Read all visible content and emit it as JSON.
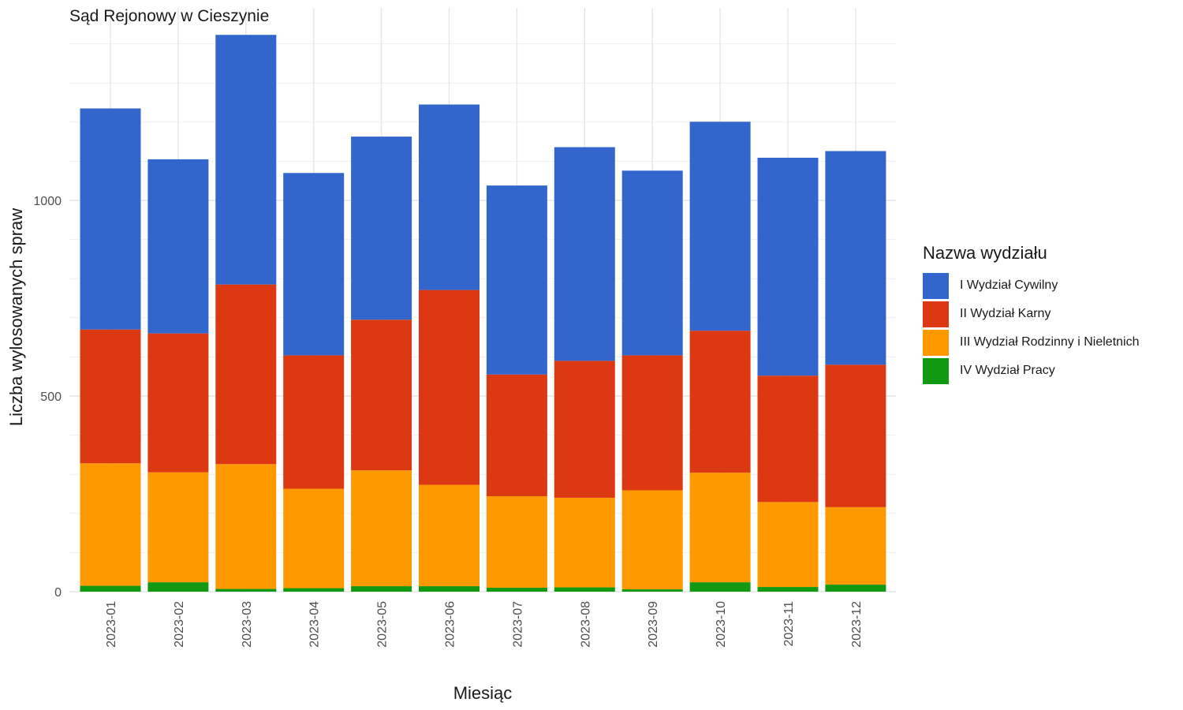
{
  "chart_data": {
    "type": "bar",
    "stacked": true,
    "title": "Sąd Rejonowy w Cieszynie",
    "xlabel": "Miesiąc",
    "ylabel": "Liczba wylosowanych spraw",
    "ylim": [
      0,
      1420
    ],
    "yticks": [
      0,
      500,
      1000
    ],
    "grid": true,
    "legend_title": "Nazwa wydziału",
    "legend_position": "right",
    "categories": [
      "2023-01",
      "2023-02",
      "2023-03",
      "2023-04",
      "2023-05",
      "2023-06",
      "2023-07",
      "2023-08",
      "2023-09",
      "2023-10",
      "2023-11",
      "2023-12"
    ],
    "series": [
      {
        "name": "IV Wydział Pracy",
        "color": "#119911",
        "values": [
          15,
          24,
          7,
          9,
          14,
          14,
          10,
          11,
          6,
          24,
          12,
          18
        ]
      },
      {
        "name": "III Wydział Rodzinny i Nieletnich",
        "color": "#FF9900",
        "values": [
          313,
          281,
          319,
          254,
          296,
          259,
          234,
          229,
          253,
          280,
          217,
          198
        ]
      },
      {
        "name": "II Wydział Karny",
        "color": "#DC3912",
        "values": [
          342,
          355,
          459,
          341,
          385,
          498,
          311,
          350,
          345,
          363,
          323,
          364
        ]
      },
      {
        "name": "I Wydział Cywilny",
        "color": "#3366CC",
        "values": [
          565,
          445,
          638,
          466,
          468,
          474,
          483,
          546,
          472,
          534,
          557,
          546
        ]
      }
    ],
    "legend_order": [
      "I Wydział Cywilny",
      "II Wydział Karny",
      "III Wydział Rodzinny i Nieletnich",
      "IV Wydział Pracy"
    ]
  }
}
